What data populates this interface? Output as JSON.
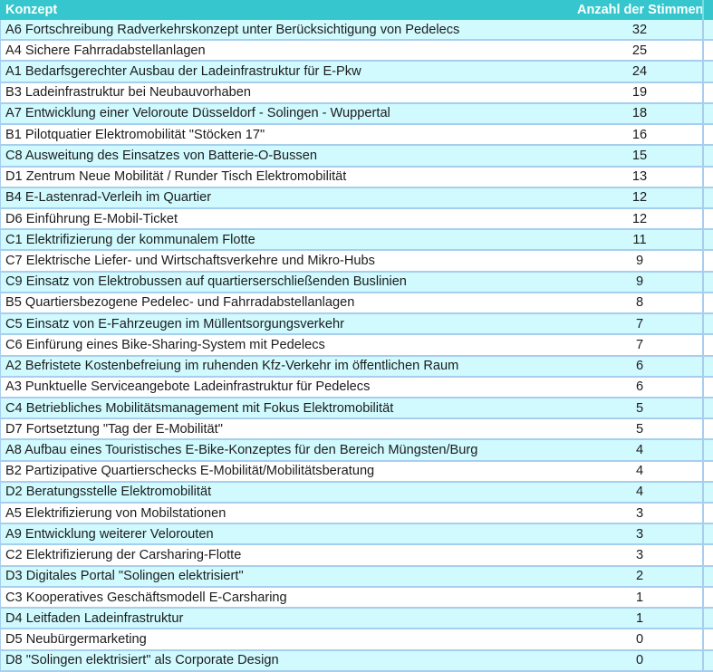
{
  "table": {
    "columns": [
      "Konzept",
      "Anzahl der Stimmen"
    ],
    "rows": [
      {
        "concept": "A6 Fortschreibung Radverkehrskonzept unter Berücksichtigung von Pedelecs",
        "votes": "32"
      },
      {
        "concept": "A4 Sichere Fahrradabstellanlagen",
        "votes": "25"
      },
      {
        "concept": "A1 Bedarfsgerechter Ausbau der Ladeinfrastruktur für E-Pkw",
        "votes": "24"
      },
      {
        "concept": "B3 Ladeinfrastruktur bei Neubauvorhaben",
        "votes": "19"
      },
      {
        "concept": "A7 Entwicklung einer Veloroute Düsseldorf - Solingen - Wuppertal",
        "votes": "18"
      },
      {
        "concept": "B1 Pilotquatier Elektromobilität \"Stöcken 17\"",
        "votes": "16"
      },
      {
        "concept": "C8 Ausweitung des Einsatzes von Batterie-O-Bussen",
        "votes": "15"
      },
      {
        "concept": "D1 Zentrum Neue Mobilität / Runder Tisch Elektromobilität",
        "votes": "13"
      },
      {
        "concept": "B4 E-Lastenrad-Verleih im Quartier",
        "votes": "12"
      },
      {
        "concept": "D6 Einführung E-Mobil-Ticket",
        "votes": "12"
      },
      {
        "concept": "C1 Elektrifizierung der kommunalem Flotte",
        "votes": "11"
      },
      {
        "concept": "C7 Elektrische Liefer- und Wirtschaftsverkehre und Mikro-Hubs",
        "votes": "9"
      },
      {
        "concept": "C9 Einsatz von Elektrobussen auf quartierserschließenden Buslinien",
        "votes": "9"
      },
      {
        "concept": "B5 Quartiersbezogene Pedelec- und Fahrradabstellanlagen",
        "votes": "8"
      },
      {
        "concept": "C5 Einsatz von E-Fahrzeugen im Müllentsorgungsverkehr",
        "votes": "7"
      },
      {
        "concept": "C6 Einfürung eines Bike-Sharing-System mit Pedelecs",
        "votes": "7"
      },
      {
        "concept": "A2 Befristete Kostenbefreiung im ruhenden Kfz-Verkehr im öffentlichen Raum",
        "votes": "6"
      },
      {
        "concept": "A3 Punktuelle Serviceangebote Ladeinfrastruktur für Pedelecs",
        "votes": "6"
      },
      {
        "concept": "C4 Betriebliches Mobilitätsmanagement mit Fokus Elektromobilität",
        "votes": "5"
      },
      {
        "concept": "D7 Fortsetztung \"Tag der E-Mobilität\"",
        "votes": "5"
      },
      {
        "concept": "A8 Aufbau eines Touristisches E-Bike-Konzeptes für den Bereich Müngsten/Burg",
        "votes": "4"
      },
      {
        "concept": "B2 Partizipative Quartierschecks E-Mobilität/Mobilitätsberatung",
        "votes": "4"
      },
      {
        "concept": "D2 Beratungsstelle Elektromobilität",
        "votes": "4"
      },
      {
        "concept": "A5 Elektrifizierung von Mobilstationen",
        "votes": "3"
      },
      {
        "concept": "A9 Entwicklung weiterer Velorouten",
        "votes": "3"
      },
      {
        "concept": "C2 Elektrifizierung der Carsharing-Flotte",
        "votes": "3"
      },
      {
        "concept": "D3 Digitales Portal \"Solingen elektrisiert\"",
        "votes": "2"
      },
      {
        "concept": "C3 Kooperatives Geschäftsmodell E-Carsharing",
        "votes": "1"
      },
      {
        "concept": "D4 Leitfaden Ladeinfrastruktur",
        "votes": "1"
      },
      {
        "concept": "D5 Neubürgermarketing",
        "votes": "0"
      },
      {
        "concept": "D8 \"Solingen elektrisiert\" als Corporate Design",
        "votes": "0"
      }
    ]
  },
  "colors": {
    "header_bg": "#35C7CD",
    "header_text": "#FFFFFF",
    "row_alt_bg": "#D0FAFE",
    "row_bg": "#FFFFFF",
    "border": "#A8CEEE",
    "text": "#1C1C1C"
  },
  "chart_data": {
    "type": "table",
    "title": "",
    "columns": [
      "Konzept",
      "Anzahl der Stimmen"
    ],
    "categories": [
      "A6 Fortschreibung Radverkehrskonzept unter Berücksichtigung von Pedelecs",
      "A4 Sichere Fahrradabstellanlagen",
      "A1 Bedarfsgerechter Ausbau der Ladeinfrastruktur für E-Pkw",
      "B3 Ladeinfrastruktur bei Neubauvorhaben",
      "A7 Entwicklung einer Veloroute Düsseldorf - Solingen - Wuppertal",
      "B1 Pilotquatier Elektromobilität \"Stöcken 17\"",
      "C8 Ausweitung des Einsatzes von Batterie-O-Bussen",
      "D1 Zentrum Neue Mobilität / Runder Tisch Elektromobilität",
      "B4 E-Lastenrad-Verleih im Quartier",
      "D6 Einführung E-Mobil-Ticket",
      "C1 Elektrifizierung der kommunalem Flotte",
      "C7 Elektrische Liefer- und Wirtschaftsverkehre und Mikro-Hubs",
      "C9 Einsatz von Elektrobussen auf quartierserschließenden Buslinien",
      "B5 Quartiersbezogene Pedelec- und Fahrradabstellanlagen",
      "C5 Einsatz von E-Fahrzeugen im Müllentsorgungsverkehr",
      "C6 Einfürung eines Bike-Sharing-System mit Pedelecs",
      "A2 Befristete Kostenbefreiung im ruhenden Kfz-Verkehr im öffentlichen Raum",
      "A3 Punktuelle Serviceangebote Ladeinfrastruktur für Pedelecs",
      "C4 Betriebliches Mobilitätsmanagement mit Fokus Elektromobilität",
      "D7 Fortsetztung \"Tag der E-Mobilität\"",
      "A8 Aufbau eines Touristisches E-Bike-Konzeptes für den Bereich Müngsten/Burg",
      "B2 Partizipative Quartierschecks E-Mobilität/Mobilitätsberatung",
      "D2 Beratungsstelle Elektromobilität",
      "A5 Elektrifizierung von Mobilstationen",
      "A9 Entwicklung weiterer Velorouten",
      "C2 Elektrifizierung der Carsharing-Flotte",
      "D3 Digitales Portal \"Solingen elektrisiert\"",
      "C3 Kooperatives Geschäftsmodell E-Carsharing",
      "D4 Leitfaden Ladeinfrastruktur",
      "D5 Neubürgermarketing",
      "D8 \"Solingen elektrisiert\" als Corporate Design"
    ],
    "values": [
      32,
      25,
      24,
      19,
      18,
      16,
      15,
      13,
      12,
      12,
      11,
      9,
      9,
      8,
      7,
      7,
      6,
      6,
      5,
      5,
      4,
      4,
      4,
      3,
      3,
      3,
      2,
      1,
      1,
      0,
      0
    ]
  }
}
